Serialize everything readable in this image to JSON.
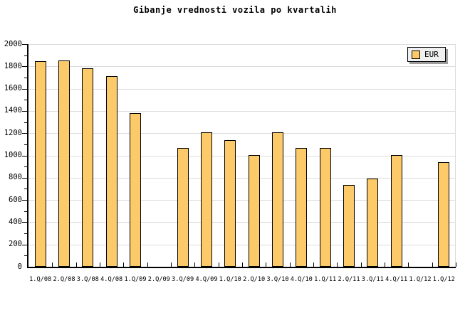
{
  "title": "Gibanje vrednosti vozila po kvartalih",
  "legend": {
    "label": "EUR"
  },
  "colors": {
    "bar_fill": "#FCCA68",
    "bar_border": "#000000",
    "grid": "#DCDCDC",
    "axis": "#000000",
    "text": "#000000",
    "legend_bg": "#F0F0F0",
    "legend_shadow": "#9C9C9C"
  },
  "chart_data": {
    "type": "bar",
    "title": "Gibanje vrednosti vozila po kvartalih",
    "xlabel": "",
    "ylabel": "",
    "categories": [
      "1.Q/08",
      "2.Q/08",
      "3.Q/08",
      "4.Q/08",
      "1.Q/09",
      "2.Q/09",
      "3.Q/09",
      "4.Q/09",
      "1.Q/10",
      "2.Q/10",
      "3.Q/10",
      "4.Q/10",
      "1.Q/11",
      "2.Q/11",
      "3.Q/11",
      "4.Q/11",
      "1.Q/12",
      "1.Q/12"
    ],
    "series": [
      {
        "name": "EUR",
        "values": [
          1845,
          1850,
          1780,
          1715,
          1380,
          null,
          1070,
          1210,
          1140,
          1000,
          1210,
          1070,
          1070,
          735,
          795,
          1000,
          null,
          940
        ]
      }
    ],
    "ylim": [
      0,
      2000
    ],
    "ytick_major": 200,
    "ytick_minor": 100,
    "grid": "horizontal gridlines at major ticks",
    "legend_position": "top-right",
    "missing_categories": [
      "2.Q/09",
      "1.Q/12 (first occurrence)"
    ]
  }
}
